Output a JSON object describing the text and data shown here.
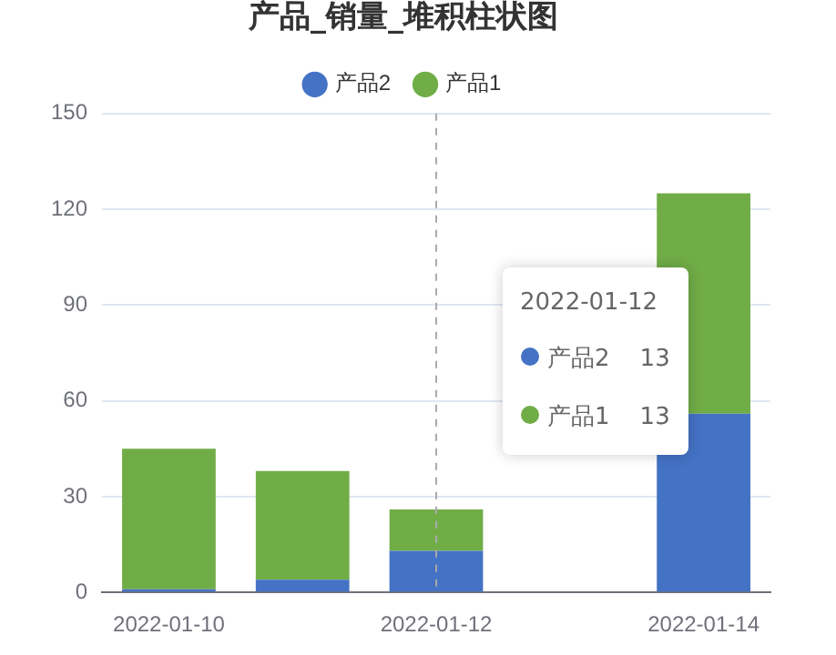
{
  "chart_data": {
    "type": "bar",
    "title": "产品_销量_堆积柱状图",
    "categories": [
      "2022-01-10",
      null,
      "2022-01-12",
      null,
      "2022-01-14"
    ],
    "series": [
      {
        "name": "产品2",
        "color": "#4472c4",
        "values": [
          1,
          4,
          13,
          null,
          56
        ]
      },
      {
        "name": "产品1",
        "color": "#70ad47",
        "values": [
          44,
          34,
          13,
          null,
          69
        ]
      }
    ],
    "stacked": true,
    "ylim": [
      0,
      150
    ],
    "yticks": [
      0,
      30,
      60,
      90,
      120,
      150
    ],
    "grid": "y",
    "legend": "top",
    "annotations": [
      "2022-01-12",
      "产品2    13",
      "产品1    13"
    ],
    "ref_lines": [
      {
        "axis": "x",
        "value": "2022-01-12",
        "color": "#aaaaaa",
        "line_style": "dashed"
      }
    ]
  }
}
